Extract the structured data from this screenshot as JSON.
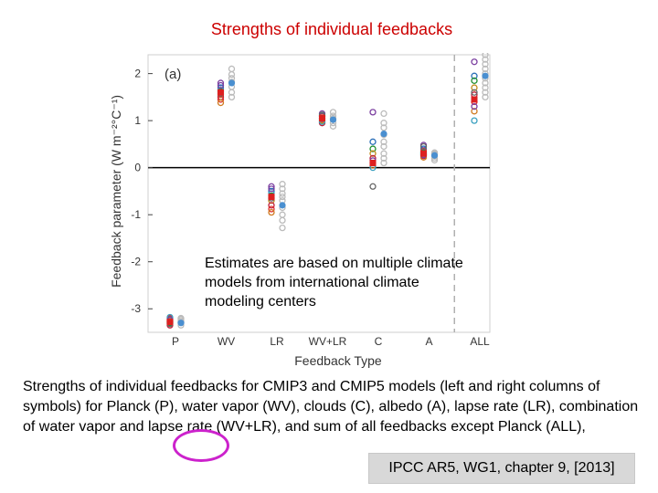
{
  "slide_title": "Strengths of individual feedbacks",
  "annotation": "Estimates are based on multiple climate models from international climate modeling centers",
  "caption": "Strengths of individual feedbacks for CMIP3 and CMIP5 models (left and right columns of symbols) for Planck (P), water vapor (WV), clouds (C), albedo (A), lapse rate (LR), combination of water vapor and lapse rate (WV+LR), and sum of all feedbacks except Planck (ALL),",
  "citation": "IPCC AR5, WG1, chapter 9, [2013]",
  "colors": {
    "title": "#cc0000",
    "highlight_ring": "#cc22cc",
    "model_palette": [
      "#7b3fa0",
      "#2a6fb8",
      "#1f8f2f",
      "#c08a1a",
      "#c0203a",
      "#e03030",
      "#d07a20",
      "#3aa0c0",
      "#666666"
    ],
    "multi_model_mean": "#4a8fd0",
    "cmip5_markers": "#bbbbbb"
  },
  "chart_data": {
    "type": "scatter",
    "panel_label": "(a)",
    "xlabel": "Feedback Type",
    "ylabel": "Feedback parameter (W m⁻²°C⁻¹)",
    "ylim": [
      -3.5,
      2.4
    ],
    "yticks": [
      2,
      1,
      0,
      -1,
      -2,
      -3
    ],
    "categories": [
      "P",
      "WV",
      "LR",
      "WV+LR",
      "C",
      "A",
      "ALL"
    ],
    "zero_line": true,
    "separator_before": "ALL",
    "series": [
      {
        "values": [
          [
            -3.28,
            -3.22,
            -3.3,
            -3.25,
            -3.35,
            -3.2,
            -3.27,
            -3.18,
            -3.32,
            -3.24
          ],
          [
            1.8,
            1.7,
            1.62,
            1.55,
            1.5,
            1.45,
            1.38,
            1.65,
            1.58,
            1.75
          ],
          [
            -0.4,
            -0.5,
            -0.6,
            -0.7,
            -0.8,
            -0.88,
            -0.95,
            -0.55,
            -0.65,
            -0.45
          ],
          [
            1.15,
            1.1,
            1.05,
            1.0,
            0.95,
            1.08,
            1.02,
            0.98,
            1.12,
            1.04
          ],
          [
            1.18,
            0.55,
            0.4,
            0.3,
            0.2,
            0.1,
            0.05,
            0.0,
            -0.4,
            0.15
          ],
          [
            0.48,
            0.4,
            0.32,
            0.28,
            0.25,
            0.35,
            0.22,
            0.3,
            0.45,
            0.27
          ],
          [
            2.25,
            1.95,
            1.85,
            1.7,
            1.55,
            1.4,
            1.2,
            1.0,
            1.6,
            1.3
          ]
        ],
        "mean": [
          -3.28,
          1.6,
          -0.62,
          1.05,
          0.1,
          0.3,
          1.45
        ]
      },
      {
        "values": [
          [
            -3.3,
            -3.25,
            -3.35,
            -3.2,
            -3.28,
            -3.22
          ],
          [
            2.1,
            1.98,
            1.9,
            1.82,
            1.72,
            1.6,
            1.5
          ],
          [
            -0.35,
            -0.55,
            -0.7,
            -0.85,
            -1.0,
            -1.12,
            -1.28,
            -0.45,
            -0.62
          ],
          [
            1.18,
            1.1,
            1.02,
            0.95,
            0.88,
            1.05
          ],
          [
            1.15,
            0.95,
            0.85,
            0.7,
            0.55,
            0.45,
            0.3,
            0.2,
            0.1
          ],
          [
            0.32,
            0.28,
            0.24,
            0.2,
            0.16,
            0.3
          ],
          [
            2.4,
            2.3,
            2.2,
            2.1,
            2.0,
            1.9,
            1.8,
            1.7,
            1.6,
            1.5
          ]
        ],
        "mean": [
          -3.3,
          1.8,
          -0.8,
          1.02,
          0.72,
          0.26,
          1.95
        ]
      }
    ]
  }
}
